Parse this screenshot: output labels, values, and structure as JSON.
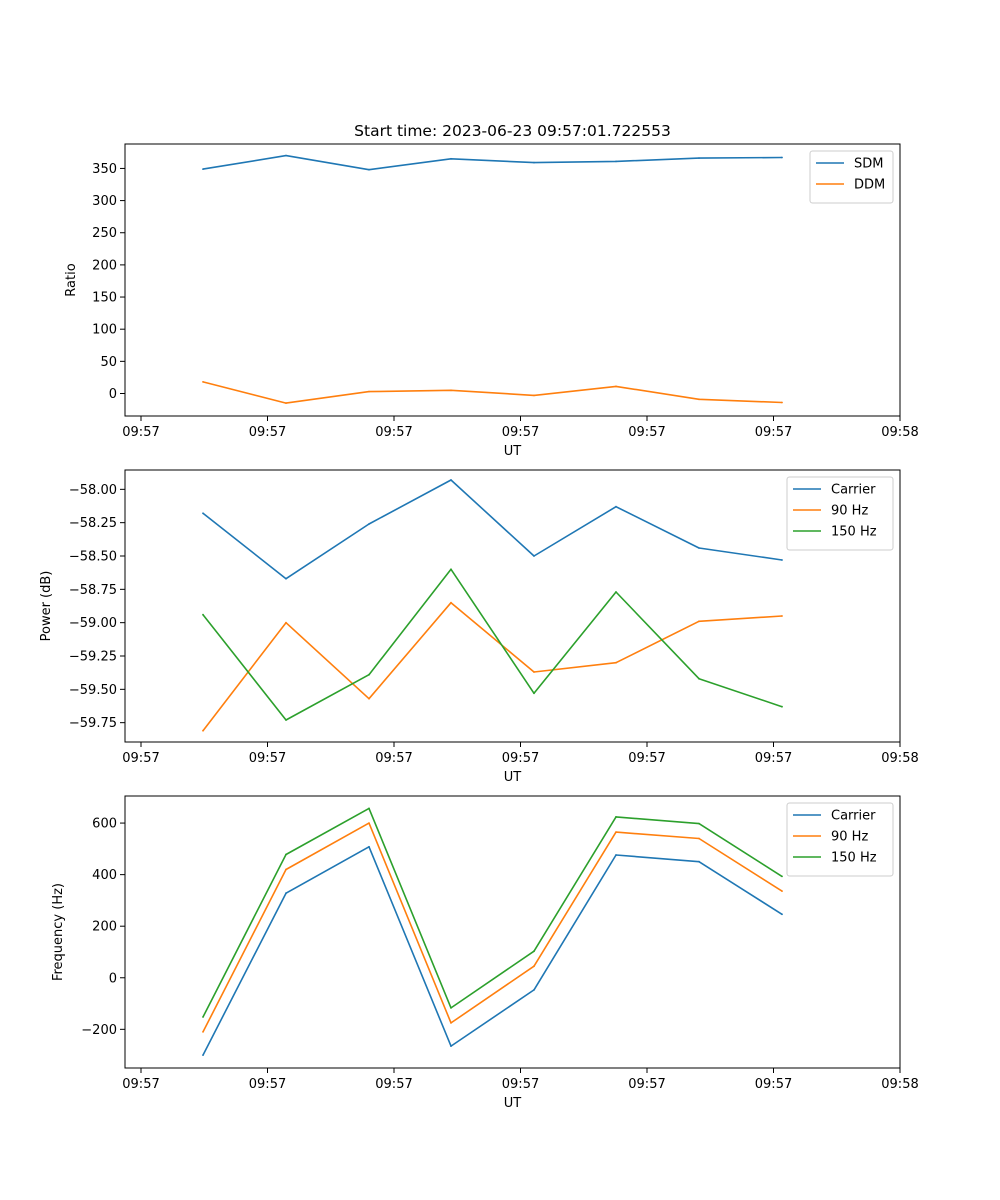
{
  "figure": {
    "title": "Start time: 2023-06-23 09:57:01.722553"
  },
  "chart_data": [
    {
      "type": "line",
      "ylabel": "Ratio",
      "xlabel": "UT",
      "x_ticks": [
        "09:57",
        "09:57",
        "09:57",
        "09:57",
        "09:57",
        "09:57",
        "09:58"
      ],
      "y_ticks": [
        "0",
        "50",
        "100",
        "150",
        "200",
        "250",
        "300",
        "350"
      ],
      "ylim": [
        -35,
        388
      ],
      "legend_position": "top-right",
      "series": [
        {
          "name": "SDM",
          "color": "#1f77b4",
          "values": [
            349,
            370,
            348,
            365,
            359,
            361,
            366,
            367
          ]
        },
        {
          "name": "DDM",
          "color": "#ff7f0e",
          "values": [
            18,
            -15,
            3,
            5,
            -3,
            11,
            -9,
            -14
          ]
        }
      ]
    },
    {
      "type": "line",
      "ylabel": "Power (dB)",
      "xlabel": "UT",
      "x_ticks": [
        "09:57",
        "09:57",
        "09:57",
        "09:57",
        "09:57",
        "09:57",
        "09:58"
      ],
      "y_ticks": [
        "−59.75",
        "−59.50",
        "−59.25",
        "−59.00",
        "−58.75",
        "−58.50",
        "−58.25",
        "−58.00"
      ],
      "ylim": [
        -59.895,
        -57.855
      ],
      "legend_position": "top-right",
      "series": [
        {
          "name": "Carrier",
          "color": "#1f77b4",
          "values": [
            -58.18,
            -58.67,
            -58.26,
            -57.93,
            -58.5,
            -58.13,
            -58.44,
            -58.53
          ]
        },
        {
          "name": "90 Hz",
          "color": "#ff7f0e",
          "values": [
            -59.81,
            -59.0,
            -59.57,
            -58.85,
            -59.37,
            -59.3,
            -58.99,
            -58.95
          ]
        },
        {
          "name": "150 Hz",
          "color": "#2ca02c",
          "values": [
            -58.94,
            -59.73,
            -59.39,
            -58.6,
            -59.53,
            -58.77,
            -59.42,
            -59.63
          ]
        }
      ]
    },
    {
      "type": "line",
      "ylabel": "Frequency (Hz)",
      "xlabel": "UT",
      "x_ticks": [
        "09:57",
        "09:57",
        "09:57",
        "09:57",
        "09:57",
        "09:57",
        "09:58"
      ],
      "y_ticks": [
        "−200",
        "0",
        "200",
        "400",
        "600"
      ],
      "ylim": [
        -350,
        705
      ],
      "legend_position": "top-right",
      "series": [
        {
          "name": "Carrier",
          "color": "#1f77b4",
          "values": [
            -300,
            328,
            508,
            -265,
            -47,
            476,
            450,
            246
          ]
        },
        {
          "name": "90 Hz",
          "color": "#ff7f0e",
          "values": [
            -210,
            420,
            600,
            -175,
            45,
            565,
            540,
            336
          ]
        },
        {
          "name": "150 Hz",
          "color": "#2ca02c",
          "values": [
            -152,
            478,
            657,
            -117,
            103,
            624,
            598,
            393
          ]
        }
      ]
    }
  ]
}
